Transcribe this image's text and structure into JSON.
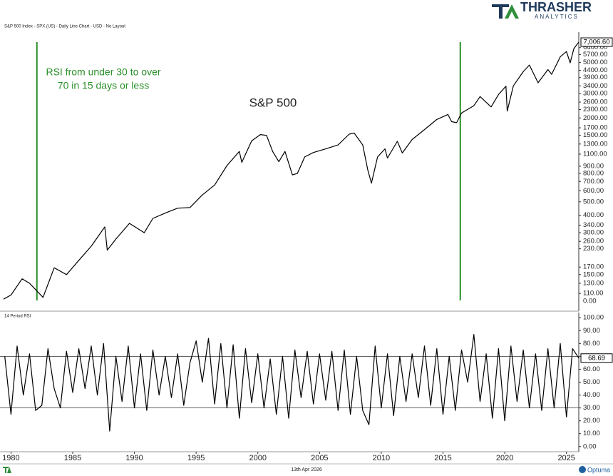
{
  "header": {
    "source": "S&P 500 Index - SPX (US) - Daily Line Chart - USD - No Layout",
    "brand": "THRASHER",
    "brand_sub": "ANALYTICS"
  },
  "footer": {
    "date": "13th Apr 2026",
    "vendor": "Optuma"
  },
  "chart_data": [
    {
      "type": "line",
      "label": "S&P 500",
      "log_scale": true,
      "color": "#000000",
      "x": [
        1979.4,
        1980.0,
        1980.9,
        1981.5,
        1982.6,
        1983.5,
        1984.5,
        1985.5,
        1986.5,
        1987.6,
        1987.8,
        1988.5,
        1989.6,
        1990.8,
        1991.5,
        1992.5,
        1993.5,
        1994.5,
        1995.5,
        1996.5,
        1997.5,
        1998.5,
        1998.7,
        1999.5,
        2000.2,
        2000.7,
        2001.2,
        2001.7,
        2002.2,
        2002.8,
        2003.2,
        2003.8,
        2004.5,
        2005.5,
        2006.5,
        2007.4,
        2007.8,
        2008.5,
        2008.9,
        2009.2,
        2009.7,
        2010.3,
        2010.5,
        2011.3,
        2011.7,
        2012.5,
        2013.5,
        2014.5,
        2015.4,
        2015.7,
        2016.1,
        2016.5,
        2017.5,
        2018.0,
        2018.9,
        2019.5,
        2020.1,
        2020.2,
        2020.7,
        2021.5,
        2022.0,
        2022.7,
        2023.5,
        2023.8,
        2024.5,
        2025.0,
        2025.3,
        2025.6,
        2026.0
      ],
      "values": [
        100,
        107,
        140,
        130,
        103,
        168,
        150,
        190,
        240,
        330,
        225,
        270,
        350,
        300,
        380,
        415,
        450,
        455,
        560,
        660,
        910,
        1150,
        960,
        1370,
        1520,
        1500,
        1150,
        970,
        1150,
        780,
        800,
        1050,
        1130,
        1200,
        1280,
        1530,
        1560,
        1280,
        850,
        680,
        1050,
        1200,
        1030,
        1360,
        1120,
        1400,
        1650,
        1950,
        2120,
        1880,
        1850,
        2170,
        2450,
        2850,
        2400,
        2950,
        3380,
        2240,
        3400,
        4300,
        4800,
        3580,
        4450,
        4120,
        5500,
        6000,
        4980,
        6300,
        7006.6
      ],
      "last_label": "7,006.60",
      "xlim": [
        1979.4,
        2026.0
      ],
      "ylim": [
        82,
        8270
      ],
      "yticks": [
        {
          "value": 110,
          "label": "110.00"
        },
        {
          "value": 130,
          "label": "130.00"
        },
        {
          "value": 150,
          "label": "150.00"
        },
        {
          "value": 170,
          "label": "170.00"
        },
        {
          "value": 230,
          "label": "230.00"
        },
        {
          "value": 260,
          "label": "260.00"
        },
        {
          "value": 300,
          "label": "300.00"
        },
        {
          "value": 340,
          "label": "340.00"
        },
        {
          "value": 400,
          "label": "400.00"
        },
        {
          "value": 500,
          "label": "500.00"
        },
        {
          "value": 600,
          "label": "600.00"
        },
        {
          "value": 700,
          "label": "700.00"
        },
        {
          "value": 800,
          "label": "800.00"
        },
        {
          "value": 900,
          "label": "900.00"
        },
        {
          "value": 1100,
          "label": "1100.00"
        },
        {
          "value": 1300,
          "label": "1300.00"
        },
        {
          "value": 1500,
          "label": "1500.00"
        },
        {
          "value": 1700,
          "label": "1700.00"
        },
        {
          "value": 2000,
          "label": "2000.00"
        },
        {
          "value": 2300,
          "label": "2300.00"
        },
        {
          "value": 2600,
          "label": "2600.00"
        },
        {
          "value": 3000,
          "label": "3000.00"
        },
        {
          "value": 3400,
          "label": "3400.00"
        },
        {
          "value": 3900,
          "label": "3900.00"
        },
        {
          "value": 4400,
          "label": "4400.00"
        },
        {
          "value": 5000,
          "label": "5000.00"
        },
        {
          "value": 5700,
          "label": "5700.00"
        },
        {
          "value": 6400,
          "label": "6400.00"
        }
      ],
      "y_floor_label": "0.00",
      "vlines": [
        1982.1,
        2016.4
      ],
      "vline_color": "#2a8f2a",
      "annotation_lines": [
        "RSI from under 30 to over",
        "70 in 15 days or less"
      ]
    },
    {
      "type": "line",
      "label": "14 Period RSI",
      "log_scale": false,
      "color": "#000000",
      "x": [
        1979.5,
        1980.0,
        1980.5,
        1981.0,
        1981.5,
        1982.0,
        1982.5,
        1983.0,
        1983.5,
        1984.0,
        1984.5,
        1985.0,
        1985.5,
        1986.0,
        1986.5,
        1987.0,
        1987.5,
        1988.0,
        1988.5,
        1989.0,
        1989.5,
        1990.0,
        1990.5,
        1991.0,
        1991.5,
        1992.0,
        1992.5,
        1993.0,
        1993.5,
        1994.0,
        1994.5,
        1995.0,
        1995.5,
        1996.0,
        1996.5,
        1997.0,
        1997.5,
        1998.0,
        1998.5,
        1999.0,
        1999.5,
        2000.0,
        2000.5,
        2001.0,
        2001.5,
        2002.0,
        2002.5,
        2003.0,
        2003.5,
        2004.0,
        2004.5,
        2005.0,
        2005.5,
        2006.0,
        2006.5,
        2007.0,
        2007.5,
        2008.0,
        2008.5,
        2009.0,
        2009.5,
        2010.0,
        2010.5,
        2011.0,
        2011.5,
        2012.0,
        2012.5,
        2013.0,
        2013.5,
        2014.0,
        2014.5,
        2015.0,
        2015.5,
        2016.0,
        2016.5,
        2017.0,
        2017.5,
        2018.0,
        2018.5,
        2019.0,
        2019.5,
        2020.0,
        2020.5,
        2021.0,
        2021.5,
        2022.0,
        2022.5,
        2023.0,
        2023.5,
        2024.0,
        2024.5,
        2025.0,
        2025.5,
        2026.0
      ],
      "values": [
        70,
        25,
        78,
        40,
        72,
        28,
        32,
        76,
        45,
        30,
        74,
        42,
        76,
        45,
        78,
        40,
        80,
        12,
        70,
        35,
        78,
        30,
        72,
        28,
        75,
        40,
        70,
        38,
        72,
        32,
        65,
        82,
        50,
        84,
        33,
        80,
        30,
        79,
        22,
        76,
        34,
        72,
        30,
        68,
        25,
        70,
        22,
        75,
        38,
        74,
        33,
        72,
        36,
        74,
        28,
        75,
        25,
        70,
        28,
        17,
        78,
        30,
        72,
        24,
        70,
        35,
        72,
        38,
        78,
        32,
        76,
        25,
        70,
        28,
        75,
        50,
        87,
        35,
        72,
        22,
        76,
        20,
        78,
        35,
        75,
        30,
        72,
        28,
        76,
        30,
        80,
        23,
        76,
        68.69
      ],
      "last_label": "68.69",
      "xlim": [
        1979.4,
        2026.0
      ],
      "ylim": [
        -4,
        104
      ],
      "yticks": [
        {
          "value": 0,
          "label": "0.00"
        },
        {
          "value": 10,
          "label": "10.00"
        },
        {
          "value": 20,
          "label": "20.00"
        },
        {
          "value": 30,
          "label": "30.00"
        },
        {
          "value": 40,
          "label": "40.00"
        },
        {
          "value": 50,
          "label": "50.00"
        },
        {
          "value": 60,
          "label": "60.00"
        },
        {
          "value": 70,
          "label": "70.00"
        },
        {
          "value": 80,
          "label": "80.00"
        },
        {
          "value": 90,
          "label": "90.00"
        },
        {
          "value": 100,
          "label": "100.00"
        }
      ],
      "hlines": [
        30,
        70
      ],
      "xticks": [
        1980,
        1985,
        1990,
        1995,
        2000,
        2005,
        2010,
        2015,
        2020,
        2025
      ]
    }
  ]
}
